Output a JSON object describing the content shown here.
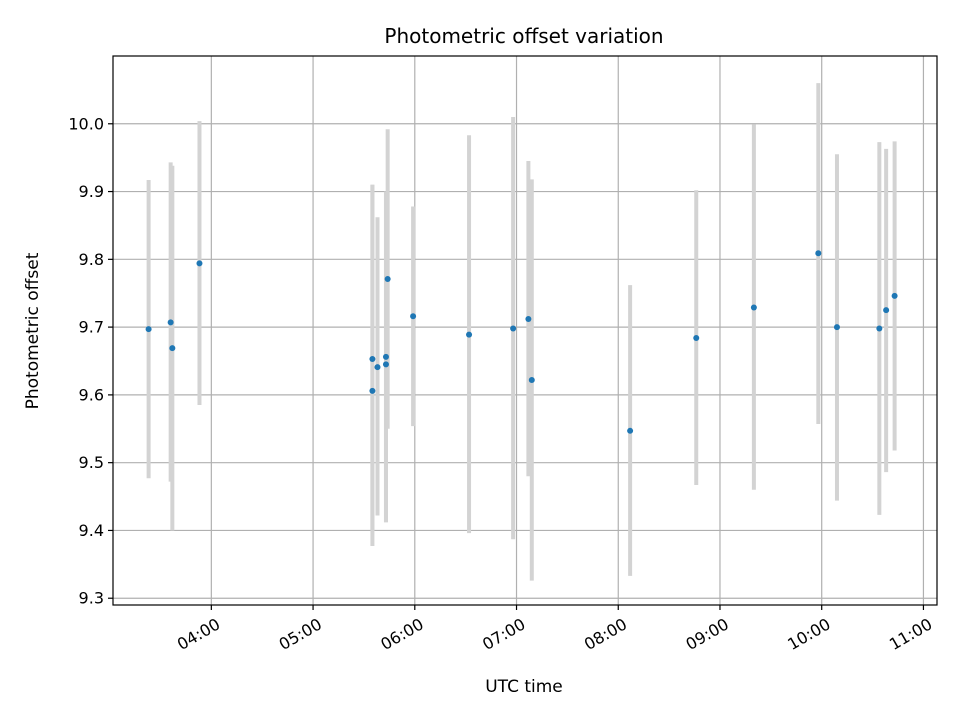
{
  "chart_data": {
    "type": "scatter",
    "title": "Photometric offset variation",
    "xlabel": "UTC time",
    "ylabel": "Photometric offset",
    "x_unit": "UTC time (HH:MM)",
    "xlim": [
      "03:02",
      "11:08"
    ],
    "ylim": [
      9.29,
      10.1
    ],
    "grid": true,
    "x_tick_labels": [
      "04:00",
      "05:00",
      "06:00",
      "07:00",
      "08:00",
      "09:00",
      "10:00",
      "11:00"
    ],
    "y_tick_labels": [
      "9.3",
      "9.4",
      "9.5",
      "9.6",
      "9.7",
      "9.8",
      "9.9",
      "10.0"
    ],
    "point_color": "#1f77b4",
    "errorbar_color": "#d3d3d3",
    "points": [
      {
        "x": "03:23",
        "y": 9.697,
        "lo": 9.477,
        "hi": 9.917
      },
      {
        "x": "03:36",
        "y": 9.707,
        "lo": 9.472,
        "hi": 9.943
      },
      {
        "x": "03:37",
        "y": 9.669,
        "lo": 9.4,
        "hi": 9.938
      },
      {
        "x": "03:53",
        "y": 9.794,
        "lo": 9.585,
        "hi": 10.004
      },
      {
        "x": "05:35",
        "y": 9.653,
        "lo": 9.4,
        "hi": 9.91
      },
      {
        "x": "05:35",
        "y": 9.606,
        "lo": 9.377,
        "hi": 9.91
      },
      {
        "x": "05:38",
        "y": 9.641,
        "lo": 9.422,
        "hi": 9.862
      },
      {
        "x": "05:43",
        "y": 9.656,
        "lo": 9.412,
        "hi": 9.9
      },
      {
        "x": "05:43",
        "y": 9.645,
        "lo": 9.412,
        "hi": 9.9
      },
      {
        "x": "05:44",
        "y": 9.771,
        "lo": 9.55,
        "hi": 9.992
      },
      {
        "x": "05:59",
        "y": 9.716,
        "lo": 9.554,
        "hi": 9.878
      },
      {
        "x": "06:32",
        "y": 9.689,
        "lo": 9.396,
        "hi": 9.983
      },
      {
        "x": "06:58",
        "y": 9.698,
        "lo": 9.387,
        "hi": 10.01
      },
      {
        "x": "07:07",
        "y": 9.712,
        "lo": 9.48,
        "hi": 9.945
      },
      {
        "x": "07:09",
        "y": 9.622,
        "lo": 9.326,
        "hi": 9.918
      },
      {
        "x": "08:07",
        "y": 9.547,
        "lo": 9.333,
        "hi": 9.762
      },
      {
        "x": "08:46",
        "y": 9.684,
        "lo": 9.467,
        "hi": 9.902
      },
      {
        "x": "09:20",
        "y": 9.729,
        "lo": 9.46,
        "hi": 9.999
      },
      {
        "x": "09:58",
        "y": 9.809,
        "lo": 9.557,
        "hi": 10.06
      },
      {
        "x": "10:09",
        "y": 9.7,
        "lo": 9.444,
        "hi": 9.955
      },
      {
        "x": "10:34",
        "y": 9.698,
        "lo": 9.423,
        "hi": 9.973
      },
      {
        "x": "10:38",
        "y": 9.725,
        "lo": 9.486,
        "hi": 9.963
      },
      {
        "x": "10:43",
        "y": 9.746,
        "lo": 9.518,
        "hi": 9.974
      }
    ]
  }
}
